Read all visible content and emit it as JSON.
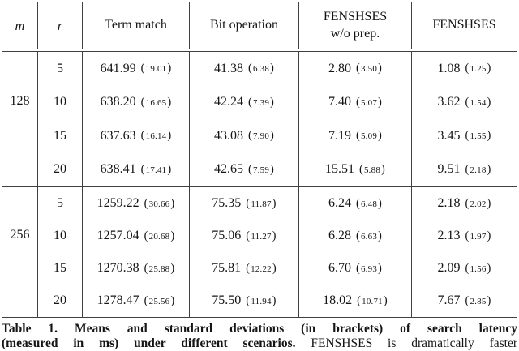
{
  "colors": {
    "background": "#ffffff",
    "rule": "#404040",
    "text": "#151515"
  },
  "table": {
    "headers": {
      "m": "m",
      "r": "r",
      "term_match": "Term match",
      "bit_operation": "Bit operation",
      "fenshses_wo_prep": "FENSHSES\nw/o prep.",
      "fenshses": "FENSHSES"
    },
    "groups": [
      {
        "m": "128",
        "rows": [
          {
            "r": "5",
            "term_match": {
              "mean": "641.99",
              "sd": "19.01"
            },
            "bit_operation": {
              "mean": "41.38",
              "sd": "6.38"
            },
            "fenshses_wo_prep": {
              "mean": "2.80",
              "sd": "3.50"
            },
            "fenshses": {
              "mean": "1.08",
              "sd": "1.25"
            }
          },
          {
            "r": "10",
            "term_match": {
              "mean": "638.20",
              "sd": "16.65"
            },
            "bit_operation": {
              "mean": "42.24",
              "sd": "7.39"
            },
            "fenshses_wo_prep": {
              "mean": "7.40",
              "sd": "5.07"
            },
            "fenshses": {
              "mean": "3.62",
              "sd": "1.54"
            }
          },
          {
            "r": "15",
            "term_match": {
              "mean": "637.63",
              "sd": "16.14"
            },
            "bit_operation": {
              "mean": "43.08",
              "sd": "7.90"
            },
            "fenshses_wo_prep": {
              "mean": "7.19",
              "sd": "5.09"
            },
            "fenshses": {
              "mean": "3.45",
              "sd": "1.55"
            }
          },
          {
            "r": "20",
            "term_match": {
              "mean": "638.41",
              "sd": "17.41"
            },
            "bit_operation": {
              "mean": "42.65",
              "sd": "7.59"
            },
            "fenshses_wo_prep": {
              "mean": "15.51",
              "sd": "5.88"
            },
            "fenshses": {
              "mean": "9.51",
              "sd": "2.18"
            }
          }
        ]
      },
      {
        "m": "256",
        "rows": [
          {
            "r": "5",
            "term_match": {
              "mean": "1259.22",
              "sd": "30.66"
            },
            "bit_operation": {
              "mean": "75.35",
              "sd": "11.87"
            },
            "fenshses_wo_prep": {
              "mean": "6.24",
              "sd": "6.48"
            },
            "fenshses": {
              "mean": "2.18",
              "sd": "2.02"
            }
          },
          {
            "r": "10",
            "term_match": {
              "mean": "1257.04",
              "sd": "20.68"
            },
            "bit_operation": {
              "mean": "75.06",
              "sd": "11.27"
            },
            "fenshses_wo_prep": {
              "mean": "6.28",
              "sd": "6.63"
            },
            "fenshses": {
              "mean": "2.13",
              "sd": "1.97"
            }
          },
          {
            "r": "15",
            "term_match": {
              "mean": "1270.38",
              "sd": "25.88"
            },
            "bit_operation": {
              "mean": "75.81",
              "sd": "12.22"
            },
            "fenshses_wo_prep": {
              "mean": "6.70",
              "sd": "6.93"
            },
            "fenshses": {
              "mean": "2.09",
              "sd": "1.56"
            }
          },
          {
            "r": "20",
            "term_match": {
              "mean": "1278.47",
              "sd": "25.56"
            },
            "bit_operation": {
              "mean": "75.50",
              "sd": "11.94"
            },
            "fenshses_wo_prep": {
              "mean": "18.02",
              "sd": "10.71"
            },
            "fenshses": {
              "mean": "7.67",
              "sd": "2.85"
            }
          }
        ]
      }
    ]
  },
  "caption": {
    "line1": "Table 1. Means and standard deviations (in brackets) of search latency",
    "line2_bold": "(measured in ms) under different scenarios.",
    "line2_regular": "FENSHSES is dramatically faster"
  }
}
